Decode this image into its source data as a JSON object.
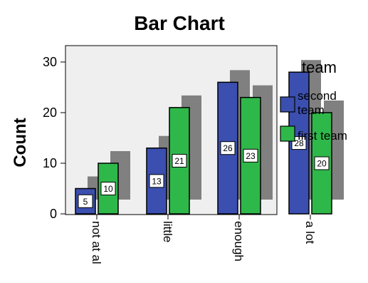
{
  "chart_data": {
    "type": "bar",
    "title": "Bar Chart",
    "xlabel": "",
    "ylabel": "Count",
    "ylim": [
      0,
      33
    ],
    "yticks": [
      0,
      10,
      20,
      30
    ],
    "categories": [
      "not at al",
      "little",
      "enough",
      "a lot"
    ],
    "series": [
      {
        "name": "second team",
        "values": [
          5,
          13,
          26,
          28
        ],
        "color": "#3b4fb0"
      },
      {
        "name": "first team",
        "values": [
          10,
          21,
          23,
          20
        ],
        "color": "#2fb84a"
      }
    ],
    "legend_title": "team",
    "legend_position": "right",
    "grid": false,
    "plot_background": "#efefef",
    "shadow_color": "#808080",
    "data_labels": true
  }
}
